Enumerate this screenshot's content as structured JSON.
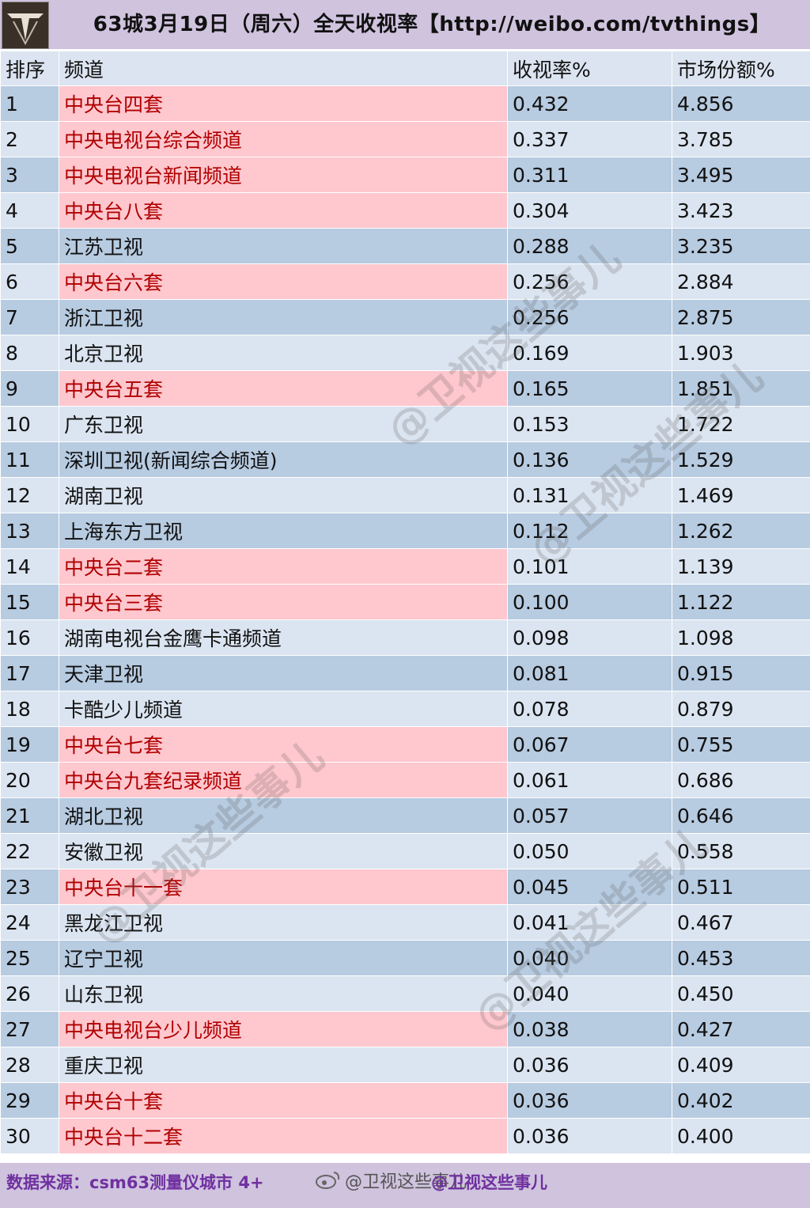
{
  "header": {
    "title": "63城3月19日（周六）全天收视率【http://weibo.com/tvthings】"
  },
  "table": {
    "columns": [
      "排序",
      "频道",
      "收视率%",
      "市场份额%"
    ],
    "rows": [
      {
        "rank": "1",
        "channel": "中央台四套",
        "rating": "0.432",
        "share": "4.856",
        "cctv": true
      },
      {
        "rank": "2",
        "channel": "中央电视台综合频道",
        "rating": "0.337",
        "share": "3.785",
        "cctv": true
      },
      {
        "rank": "3",
        "channel": "中央电视台新闻频道",
        "rating": "0.311",
        "share": "3.495",
        "cctv": true
      },
      {
        "rank": "4",
        "channel": "中央台八套",
        "rating": "0.304",
        "share": "3.423",
        "cctv": true
      },
      {
        "rank": "5",
        "channel": "江苏卫视",
        "rating": "0.288",
        "share": "3.235",
        "cctv": false
      },
      {
        "rank": "6",
        "channel": "中央台六套",
        "rating": "0.256",
        "share": "2.884",
        "cctv": true
      },
      {
        "rank": "7",
        "channel": "浙江卫视",
        "rating": "0.256",
        "share": "2.875",
        "cctv": false
      },
      {
        "rank": "8",
        "channel": "北京卫视",
        "rating": "0.169",
        "share": "1.903",
        "cctv": false
      },
      {
        "rank": "9",
        "channel": "中央台五套",
        "rating": "0.165",
        "share": "1.851",
        "cctv": true
      },
      {
        "rank": "10",
        "channel": "广东卫视",
        "rating": "0.153",
        "share": "1.722",
        "cctv": false
      },
      {
        "rank": "11",
        "channel": "深圳卫视(新闻综合频道)",
        "rating": "0.136",
        "share": "1.529",
        "cctv": false
      },
      {
        "rank": "12",
        "channel": "湖南卫视",
        "rating": "0.131",
        "share": "1.469",
        "cctv": false
      },
      {
        "rank": "13",
        "channel": "上海东方卫视",
        "rating": "0.112",
        "share": "1.262",
        "cctv": false
      },
      {
        "rank": "14",
        "channel": "中央台二套",
        "rating": "0.101",
        "share": "1.139",
        "cctv": true
      },
      {
        "rank": "15",
        "channel": "中央台三套",
        "rating": "0.100",
        "share": "1.122",
        "cctv": true
      },
      {
        "rank": "16",
        "channel": "湖南电视台金鹰卡通频道",
        "rating": "0.098",
        "share": "1.098",
        "cctv": false
      },
      {
        "rank": "17",
        "channel": "天津卫视",
        "rating": "0.081",
        "share": "0.915",
        "cctv": false
      },
      {
        "rank": "18",
        "channel": "卡酷少儿频道",
        "rating": "0.078",
        "share": "0.879",
        "cctv": false
      },
      {
        "rank": "19",
        "channel": "中央台七套",
        "rating": "0.067",
        "share": "0.755",
        "cctv": true
      },
      {
        "rank": "20",
        "channel": "中央台九套纪录频道",
        "rating": "0.061",
        "share": "0.686",
        "cctv": true
      },
      {
        "rank": "21",
        "channel": "湖北卫视",
        "rating": "0.057",
        "share": "0.646",
        "cctv": false
      },
      {
        "rank": "22",
        "channel": "安徽卫视",
        "rating": "0.050",
        "share": "0.558",
        "cctv": false
      },
      {
        "rank": "23",
        "channel": "中央台十一套",
        "rating": "0.045",
        "share": "0.511",
        "cctv": true
      },
      {
        "rank": "24",
        "channel": "黑龙江卫视",
        "rating": "0.041",
        "share": "0.467",
        "cctv": false
      },
      {
        "rank": "25",
        "channel": "辽宁卫视",
        "rating": "0.040",
        "share": "0.453",
        "cctv": false
      },
      {
        "rank": "26",
        "channel": "山东卫视",
        "rating": "0.040",
        "share": "0.450",
        "cctv": false
      },
      {
        "rank": "27",
        "channel": "中央电视台少儿频道",
        "rating": "0.038",
        "share": "0.427",
        "cctv": true
      },
      {
        "rank": "28",
        "channel": "重庆卫视",
        "rating": "0.036",
        "share": "0.409",
        "cctv": false
      },
      {
        "rank": "29",
        "channel": "中央台十套",
        "rating": "0.036",
        "share": "0.402",
        "cctv": true
      },
      {
        "rank": "30",
        "channel": "中央台十二套",
        "rating": "0.036",
        "share": "0.400",
        "cctv": true
      }
    ]
  },
  "footer": {
    "source": "数据来源：csm63测量仪城市 4+",
    "weibo_handle": "@卫视这些事儿",
    "tag": "@卫视这些事儿"
  },
  "watermark": {
    "text": "@卫视这些事儿"
  },
  "colors": {
    "header_bg": "#cfc3de",
    "row_dark": "#b7cbe1",
    "row_light": "#dbe5f1",
    "cctv_bg": "#ffc7ce",
    "cctv_text": "#b00000",
    "footer_text": "#7030a0"
  },
  "icons": {
    "logo": "tv-logo-icon",
    "weibo": "weibo-icon"
  }
}
